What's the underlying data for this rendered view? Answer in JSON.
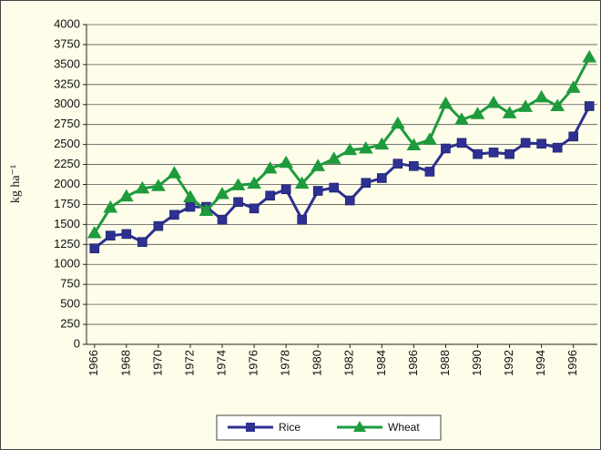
{
  "chart_data": {
    "type": "line",
    "y_label": "kg ha⁻¹",
    "x": [
      1966,
      1967,
      1968,
      1969,
      1970,
      1971,
      1972,
      1973,
      1974,
      1975,
      1976,
      1977,
      1978,
      1979,
      1980,
      1981,
      1982,
      1983,
      1984,
      1985,
      1986,
      1987,
      1988,
      1989,
      1990,
      1991,
      1992,
      1993,
      1994,
      1995,
      1996,
      1997
    ],
    "series": [
      {
        "name": "Rice",
        "color": "#2e3192",
        "marker": "square",
        "values": [
          1200,
          1360,
          1380,
          1280,
          1480,
          1620,
          1720,
          1720,
          1560,
          1780,
          1700,
          1860,
          1940,
          1560,
          1920,
          1960,
          1800,
          2020,
          2080,
          2260,
          2230,
          2160,
          2450,
          2520,
          2380,
          2400,
          2380,
          2520,
          2510,
          2460,
          2600,
          2980
        ]
      },
      {
        "name": "Wheat",
        "color": "#1e9b3c",
        "marker": "triangle",
        "values": [
          1390,
          1710,
          1850,
          1950,
          1980,
          2140,
          1840,
          1670,
          1880,
          1990,
          2010,
          2200,
          2270,
          2010,
          2230,
          2320,
          2430,
          2450,
          2500,
          2760,
          2490,
          2560,
          3010,
          2810,
          2880,
          3020,
          2890,
          2970,
          3090,
          2980,
          3210,
          3590
        ]
      }
    ],
    "xlim": [
      1965.5,
      1997.5
    ],
    "xticks": [
      1966,
      1968,
      1970,
      1972,
      1974,
      1976,
      1978,
      1980,
      1982,
      1984,
      1986,
      1988,
      1990,
      1992,
      1994,
      1996
    ],
    "ylim": [
      0,
      4000
    ],
    "yticks": [
      0,
      250,
      500,
      750,
      1000,
      1250,
      1500,
      1750,
      2000,
      2250,
      2500,
      2750,
      3000,
      3250,
      3500,
      3750,
      4000
    ],
    "grid": true,
    "legend": "bottom"
  }
}
